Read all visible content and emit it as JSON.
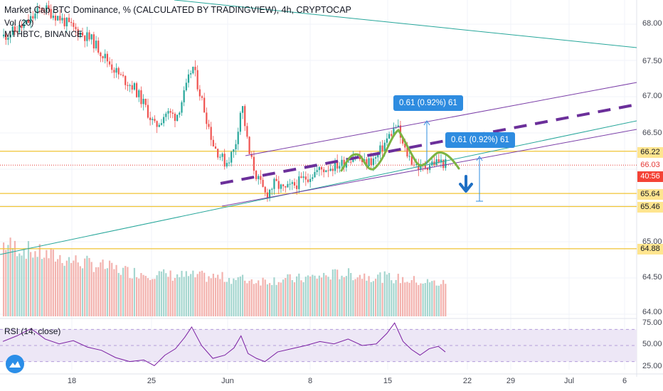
{
  "legend": {
    "line1": "Market Cap BTC Dominance, % (CALCULATED BY TRADINGVIEW), 4h, CRYPTOCAP",
    "line2": "Vol (20)",
    "line3": "MTHBTC, BINANCE"
  },
  "rsi_label": "RSI (14, close)",
  "callouts": [
    "0.61 (0.92%) 61",
    "0.61 (0.92%) 61"
  ],
  "price_axis_labels": [
    "68.00",
    "67.50",
    "67.00",
    "66.50",
    "65.00",
    "64.50",
    "64.00"
  ],
  "price_tags": [
    {
      "label": "66.22",
      "color": "#ffe58f"
    },
    {
      "label": "66.03",
      "color": "#ffffff",
      "text_color": "#e53935"
    },
    {
      "label": "40:56",
      "color": "#f44336",
      "text_color": "#ffffff"
    },
    {
      "label": "65.64",
      "color": "#ffe58f"
    },
    {
      "label": "65.46",
      "color": "#ffe58f"
    },
    {
      "label": "64.88",
      "color": "#ffe58f"
    }
  ],
  "rsi_axis_labels": [
    "75.00",
    "50.00",
    "25.00"
  ],
  "date_labels": [
    "18",
    "25",
    "Jun",
    "8",
    "15",
    "22",
    "29",
    "Jul",
    "6"
  ],
  "colors": {
    "candle_up": "#26a69a",
    "candle_down": "#ef5350",
    "level_line": "#f0c435",
    "channel_purple": "#7b3fa8",
    "dashed_trend": "#6b2f9a",
    "teal_line": "#26a69a",
    "pattern_green": "#7cb342",
    "rsi_line": "#7b1fa2",
    "rsi_band": "#ede7f6",
    "arrow_blue": "#1e6fc4",
    "callout_blue": "#2e8ce0"
  },
  "chart_data": {
    "type": "candlestick",
    "title": "Market Cap BTC Dominance, % (CALCULATED BY TRADINGVIEW), 4h, CRYPTOCAP",
    "price_range": [
      63.95,
      68.3
    ],
    "levels": [
      66.22,
      66.03,
      65.64,
      65.46,
      64.88
    ],
    "close_path": [
      {
        "t": 0,
        "v": 67.8
      },
      {
        "t": 30,
        "v": 67.95
      },
      {
        "t": 55,
        "v": 68.2
      },
      {
        "t": 80,
        "v": 68.05
      },
      {
        "t": 100,
        "v": 67.9
      },
      {
        "t": 125,
        "v": 67.75
      },
      {
        "t": 145,
        "v": 67.5
      },
      {
        "t": 165,
        "v": 67.25
      },
      {
        "t": 185,
        "v": 67.1
      },
      {
        "t": 200,
        "v": 66.85
      },
      {
        "t": 215,
        "v": 66.55
      },
      {
        "t": 230,
        "v": 66.75
      },
      {
        "t": 245,
        "v": 66.7
      },
      {
        "t": 258,
        "v": 67.05
      },
      {
        "t": 268,
        "v": 67.4
      },
      {
        "t": 282,
        "v": 66.9
      },
      {
        "t": 298,
        "v": 66.3
      },
      {
        "t": 315,
        "v": 66.05
      },
      {
        "t": 328,
        "v": 66.25
      },
      {
        "t": 338,
        "v": 66.9
      },
      {
        "t": 348,
        "v": 66.2
      },
      {
        "t": 360,
        "v": 65.85
      },
      {
        "t": 372,
        "v": 65.62
      },
      {
        "t": 385,
        "v": 65.78
      },
      {
        "t": 398,
        "v": 65.68
      },
      {
        "t": 412,
        "v": 65.75
      },
      {
        "t": 428,
        "v": 65.85
      },
      {
        "t": 445,
        "v": 65.95
      },
      {
        "t": 462,
        "v": 66.0
      },
      {
        "t": 480,
        "v": 66.05
      },
      {
        "t": 498,
        "v": 66.18
      },
      {
        "t": 512,
        "v": 66.05
      },
      {
        "t": 528,
        "v": 66.12
      },
      {
        "t": 545,
        "v": 66.4
      },
      {
        "t": 558,
        "v": 66.58
      },
      {
        "t": 568,
        "v": 66.25
      },
      {
        "t": 580,
        "v": 66.08
      },
      {
        "t": 592,
        "v": 65.98
      },
      {
        "t": 605,
        "v": 66.05
      },
      {
        "t": 618,
        "v": 66.08
      },
      {
        "t": 630,
        "v": 66.03
      }
    ],
    "volume_path": [
      {
        "t": 0,
        "v": 0.85
      },
      {
        "t": 60,
        "v": 0.72
      },
      {
        "t": 120,
        "v": 0.62
      },
      {
        "t": 180,
        "v": 0.52
      },
      {
        "t": 240,
        "v": 0.48
      },
      {
        "t": 300,
        "v": 0.46
      },
      {
        "t": 360,
        "v": 0.42
      },
      {
        "t": 420,
        "v": 0.44
      },
      {
        "t": 480,
        "v": 0.5
      },
      {
        "t": 540,
        "v": 0.46
      },
      {
        "t": 600,
        "v": 0.4
      },
      {
        "t": 630,
        "v": 0.38
      }
    ],
    "rsi_path": [
      {
        "t": 0,
        "v": 55
      },
      {
        "t": 20,
        "v": 62
      },
      {
        "t": 40,
        "v": 71
      },
      {
        "t": 60,
        "v": 58
      },
      {
        "t": 80,
        "v": 52
      },
      {
        "t": 100,
        "v": 56
      },
      {
        "t": 120,
        "v": 48
      },
      {
        "t": 140,
        "v": 44
      },
      {
        "t": 160,
        "v": 35
      },
      {
        "t": 180,
        "v": 30
      },
      {
        "t": 200,
        "v": 32
      },
      {
        "t": 215,
        "v": 25
      },
      {
        "t": 230,
        "v": 38
      },
      {
        "t": 245,
        "v": 46
      },
      {
        "t": 258,
        "v": 60
      },
      {
        "t": 268,
        "v": 73
      },
      {
        "t": 282,
        "v": 50
      },
      {
        "t": 298,
        "v": 34
      },
      {
        "t": 315,
        "v": 38
      },
      {
        "t": 328,
        "v": 47
      },
      {
        "t": 338,
        "v": 62
      },
      {
        "t": 348,
        "v": 40
      },
      {
        "t": 360,
        "v": 34
      },
      {
        "t": 372,
        "v": 30
      },
      {
        "t": 390,
        "v": 42
      },
      {
        "t": 410,
        "v": 46
      },
      {
        "t": 430,
        "v": 50
      },
      {
        "t": 450,
        "v": 55
      },
      {
        "t": 470,
        "v": 52
      },
      {
        "t": 490,
        "v": 58
      },
      {
        "t": 510,
        "v": 50
      },
      {
        "t": 530,
        "v": 52
      },
      {
        "t": 545,
        "v": 65
      },
      {
        "t": 556,
        "v": 78
      },
      {
        "t": 568,
        "v": 55
      },
      {
        "t": 580,
        "v": 45
      },
      {
        "t": 592,
        "v": 38
      },
      {
        "t": 605,
        "v": 46
      },
      {
        "t": 618,
        "v": 49
      },
      {
        "t": 628,
        "v": 42
      }
    ],
    "rsi_range": [
      20,
      80
    ],
    "rsi_levels": [
      70,
      50,
      30
    ],
    "annotations": {
      "measure_1": "0.61 (0.92%) 61",
      "measure_2": "0.61 (0.92%) 61"
    }
  }
}
